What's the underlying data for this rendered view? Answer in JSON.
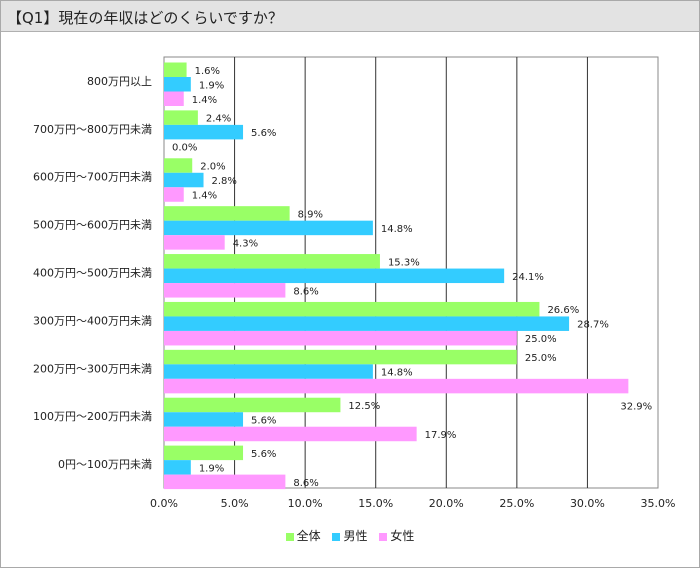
{
  "title": "【Q1】現在の年収はどのくらいですか？",
  "colors": {
    "all": "#99ff66",
    "male": "#33ccff",
    "female": "#ff99ff"
  },
  "legend": [
    {
      "label": "全体",
      "color": "#99ff66"
    },
    {
      "label": "男性",
      "color": "#33ccff"
    },
    {
      "label": "女性",
      "color": "#ff99ff"
    }
  ],
  "chart_data": {
    "type": "bar",
    "orientation": "horizontal",
    "categories": [
      "800万円以上",
      "700万円～800万円未満",
      "600万円～700万円未満",
      "500万円～600万円未満",
      "400万円～500万円未満",
      "300万円～400万円未満",
      "200万円～300万円未満",
      "100万円～200万円未満",
      "0円～100万円未満"
    ],
    "series": [
      {
        "name": "全体",
        "values": [
          1.6,
          2.4,
          2.0,
          8.9,
          15.3,
          26.6,
          25.0,
          12.5,
          5.6
        ]
      },
      {
        "name": "男性",
        "values": [
          1.9,
          5.6,
          2.8,
          14.8,
          24.1,
          28.7,
          14.8,
          5.6,
          1.9
        ]
      },
      {
        "name": "女性",
        "values": [
          1.4,
          0.0,
          1.4,
          4.3,
          8.6,
          25.0,
          32.9,
          17.9,
          8.6
        ]
      }
    ],
    "value_labels": [
      [
        "1.6%",
        "2.4%",
        "2.0%",
        "8.9%",
        "15.3%",
        "26.6%",
        "25.0%",
        "12.5%",
        "5.6%"
      ],
      [
        "1.9%",
        "5.6%",
        "2.8%",
        "14.8%",
        "24.1%",
        "28.7%",
        "14.8%",
        "5.6%",
        "1.9%"
      ],
      [
        "1.4%",
        "0.0%",
        "1.4%",
        "4.3%",
        "8.6%",
        "25.0%",
        "32.9%",
        "17.9%",
        "8.6%"
      ]
    ],
    "xlim": [
      0,
      35
    ],
    "xticks": [
      "0.0%",
      "5.0%",
      "10.0%",
      "15.0%",
      "20.0%",
      "25.0%",
      "30.0%",
      "35.0%"
    ],
    "grid": true,
    "legend_position": "bottom"
  }
}
